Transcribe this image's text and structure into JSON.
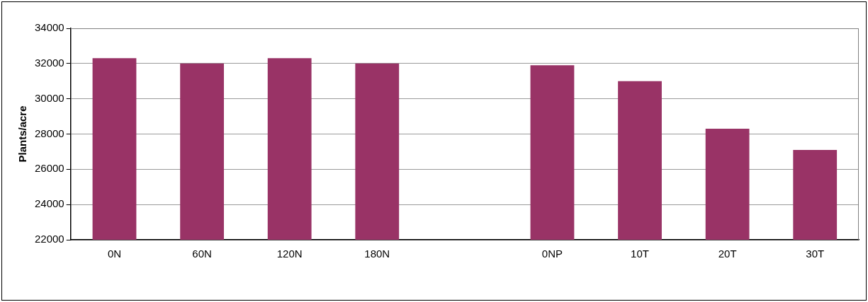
{
  "chart_data": {
    "type": "bar",
    "ylabel": "Plants/acre",
    "categories": [
      "0N",
      "60N",
      "120N",
      "180N",
      null,
      "0NP",
      "10T",
      "20T",
      "30T"
    ],
    "values": [
      32300,
      32000,
      32300,
      32000,
      null,
      31900,
      31000,
      28300,
      27100
    ],
    "color": "#993366",
    "ylim": [
      22000,
      34000
    ],
    "yticks": [
      22000,
      24000,
      26000,
      28000,
      30000,
      32000,
      34000
    ],
    "grid": "y",
    "legend": false
  }
}
